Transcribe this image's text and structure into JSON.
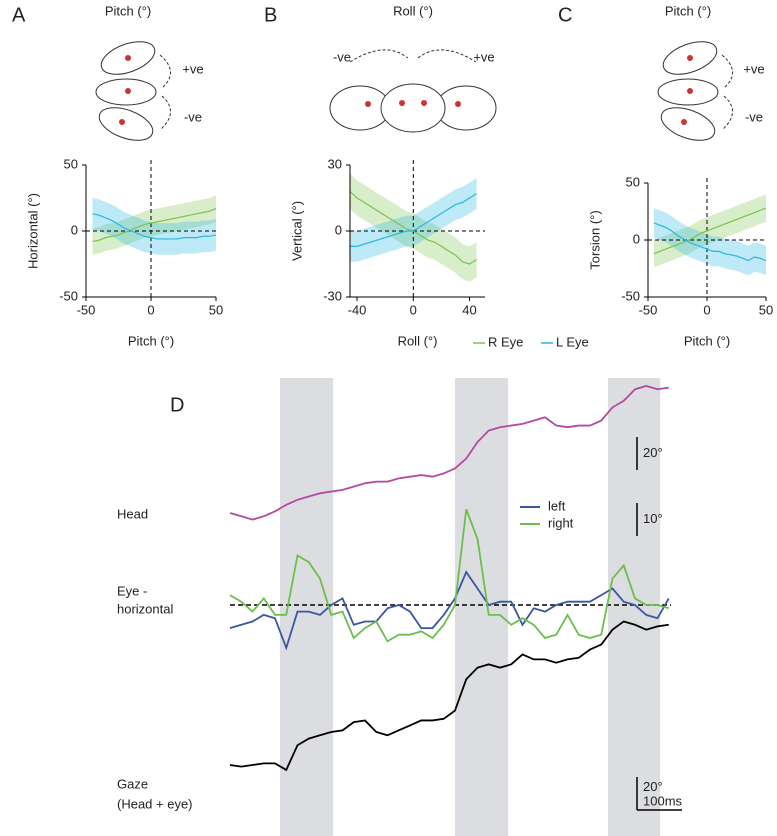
{
  "chart_data": [
    {
      "type": "line",
      "panel_label": "A",
      "title": "Pitch (°)",
      "annotations": [
        "+ve",
        "-ve"
      ],
      "xlabel": "Pitch (°)",
      "ylabel": "Horizontal (°)",
      "x": [
        -45,
        -40,
        -35,
        -30,
        -25,
        -20,
        -15,
        -10,
        -5,
        0,
        5,
        10,
        15,
        20,
        25,
        30,
        35,
        40,
        45,
        50
      ],
      "xlim": [
        -50,
        50
      ],
      "xticks": [
        -50,
        0,
        50
      ],
      "ylim": [
        -50,
        50
      ],
      "yticks": [
        -50,
        0,
        50
      ],
      "zero_lines": true,
      "series": [
        {
          "color": "#7dc24b",
          "values": [
            -8,
            -7,
            -5,
            -4,
            -3,
            -1,
            1,
            3,
            5,
            6,
            7,
            8,
            9,
            10,
            11,
            12,
            13,
            14,
            15,
            17
          ],
          "errors": [
            10,
            10,
            10,
            10,
            10,
            10,
            10,
            10,
            10,
            10,
            10,
            10,
            10,
            10,
            10,
            10,
            10,
            10,
            10,
            10
          ]
        },
        {
          "color": "#29b6e6",
          "values": [
            13,
            12,
            10,
            8,
            5,
            2,
            0,
            -2,
            -4,
            -5,
            -6,
            -6,
            -6,
            -6,
            -5,
            -5,
            -5,
            -4,
            -4,
            -3
          ],
          "errors": [
            12,
            12,
            12,
            12,
            12,
            12,
            12,
            12,
            12,
            12,
            12,
            12,
            12,
            12,
            12,
            12,
            12,
            12,
            12,
            12
          ]
        }
      ]
    },
    {
      "type": "line",
      "panel_label": "B",
      "title": "Roll (°)",
      "annotations": [
        "-ve",
        "+ve"
      ],
      "xlabel": "Roll (°)",
      "ylabel": "Vertical (°)",
      "x": [
        -45,
        -40,
        -35,
        -30,
        -25,
        -20,
        -15,
        -10,
        -5,
        0,
        5,
        10,
        15,
        20,
        25,
        30,
        35,
        40,
        45
      ],
      "xlim": [
        -45,
        51
      ],
      "xticks": [
        -40,
        0,
        40
      ],
      "ylim": [
        -30,
        30
      ],
      "yticks": [
        -30,
        0,
        30
      ],
      "zero_lines": true,
      "legend": true,
      "series": [
        {
          "name": "R Eye",
          "color": "#7dc24b",
          "values": [
            18,
            15,
            13,
            11,
            9,
            7,
            5,
            3,
            1,
            0,
            -2,
            -4,
            -5,
            -7,
            -9,
            -11,
            -14,
            -15,
            -13
          ],
          "errors": [
            8,
            8,
            8,
            8,
            8,
            8,
            8,
            8,
            8,
            8,
            8,
            8,
            8,
            8,
            8,
            8,
            8,
            8,
            8
          ]
        },
        {
          "name": "L Eye",
          "color": "#29b6e6",
          "values": [
            -7,
            -7,
            -6,
            -5,
            -4,
            -3,
            -2,
            -1,
            0,
            0,
            2,
            4,
            6,
            8,
            10,
            12,
            13,
            15,
            17
          ],
          "errors": [
            7,
            7,
            7,
            7,
            7,
            7,
            7,
            7,
            7,
            7,
            7,
            7,
            7,
            7,
            7,
            7,
            7,
            7,
            7
          ]
        }
      ]
    },
    {
      "type": "line",
      "panel_label": "C",
      "title": "Pitch (°)",
      "annotations": [
        "+ve",
        "-ve"
      ],
      "xlabel": "Pitch (°)",
      "ylabel": "Torsion (°)",
      "x": [
        -45,
        -40,
        -35,
        -30,
        -25,
        -20,
        -15,
        -10,
        -5,
        0,
        5,
        10,
        15,
        20,
        25,
        30,
        35,
        40,
        45,
        50
      ],
      "xlim": [
        -50,
        50
      ],
      "xticks": [
        -50,
        0,
        50
      ],
      "ylim": [
        -50,
        50
      ],
      "yticks": [
        -50,
        0,
        50
      ],
      "zero_lines": true,
      "series": [
        {
          "color": "#7dc24b",
          "values": [
            -12,
            -10,
            -8,
            -6,
            -4,
            -2,
            0,
            3,
            6,
            8,
            10,
            12,
            14,
            16,
            18,
            20,
            22,
            24,
            26,
            28
          ],
          "errors": [
            12,
            12,
            12,
            12,
            12,
            12,
            12,
            12,
            12,
            12,
            12,
            12,
            12,
            12,
            12,
            12,
            12,
            12,
            12,
            12
          ]
        },
        {
          "color": "#29b6e6",
          "values": [
            15,
            13,
            11,
            8,
            4,
            1,
            -2,
            -4,
            -6,
            -8,
            -10,
            -10,
            -12,
            -13,
            -14,
            -16,
            -18,
            -15,
            -16,
            -18
          ],
          "errors": [
            13,
            13,
            13,
            13,
            13,
            13,
            13,
            13,
            13,
            13,
            13,
            13,
            13,
            13,
            13,
            13,
            13,
            13,
            13,
            13
          ]
        }
      ]
    },
    {
      "type": "trace",
      "panel_label": "D",
      "x": [
        0,
        25,
        50,
        75,
        100,
        125,
        150,
        175,
        200,
        225,
        250,
        275,
        300,
        325,
        350,
        375,
        400,
        425,
        450,
        475,
        500,
        525,
        550,
        575,
        600,
        625,
        650,
        675,
        700,
        725,
        750,
        775,
        800,
        825,
        850,
        875,
        900,
        925,
        950,
        975
      ],
      "xlim": [
        0,
        980
      ],
      "shaded": [
        [
          111,
          229
        ],
        [
          500,
          618
        ],
        [
          840,
          956
        ]
      ],
      "traces": [
        {
          "label": [
            "Head"
          ],
          "scale": {
            "value": 20,
            "label": "20°"
          },
          "series": [
            {
              "color": "#b5489f",
              "values": [
                0,
                -2,
                -4,
                -2,
                1,
                5,
                8,
                10,
                12,
                13,
                14,
                16,
                18,
                19,
                19,
                21,
                22,
                23,
                22,
                24,
                27,
                33,
                43,
                50,
                52,
                53,
                54,
                56,
                58,
                53,
                52,
                53,
                53,
                56,
                64,
                68,
                75,
                77,
                75,
                76
              ]
            }
          ]
        },
        {
          "label": [
            "Eye -",
            "horizontal"
          ],
          "zero_line": true,
          "scale": {
            "value": 10,
            "label": "10°"
          },
          "series": [
            {
              "name": "left",
              "color": "#3b55a5",
              "values": [
                -7,
                -6,
                -5,
                -3,
                -4,
                -13,
                -2,
                -2,
                -3,
                0,
                2,
                -6,
                -5,
                -5,
                -1,
                0,
                -2,
                -7,
                -7,
                -3,
                2,
                10,
                5,
                0,
                1,
                1,
                -6,
                -1,
                -2,
                0,
                1,
                1,
                1,
                3,
                5,
                1,
                0,
                -3,
                -4,
                2
              ]
            },
            {
              "name": "right",
              "color": "#6abf4b",
              "values": [
                3,
                1,
                -2,
                2,
                -3,
                -3,
                15,
                13,
                8,
                -3,
                -2,
                -10,
                -7,
                -5,
                -11,
                -9,
                -9,
                -8,
                -10,
                -6,
                0,
                29,
                20,
                -3,
                -3,
                -6,
                -4,
                -6,
                -10,
                -9,
                -3,
                -9,
                -10,
                -9,
                8,
                12,
                2,
                0,
                0,
                -1
              ]
            }
          ]
        },
        {
          "label": [
            "Gaze",
            "(Head + eye)"
          ],
          "scale": {
            "value": 20,
            "label": "20°"
          },
          "series": [
            {
              "color": "#000000",
              "values": [
                0,
                -1,
                0,
                1,
                1,
                -3,
                12,
                16,
                18,
                20,
                21,
                26,
                27,
                20,
                18,
                21,
                24,
                27,
                27,
                28,
                33,
                52,
                59,
                61,
                59,
                61,
                67,
                64,
                64,
                62,
                64,
                65,
                70,
                73,
                82,
                87,
                85,
                82,
                84,
                85
              ]
            }
          ]
        }
      ],
      "time_scale": {
        "value": 100,
        "label": "100ms"
      }
    }
  ]
}
